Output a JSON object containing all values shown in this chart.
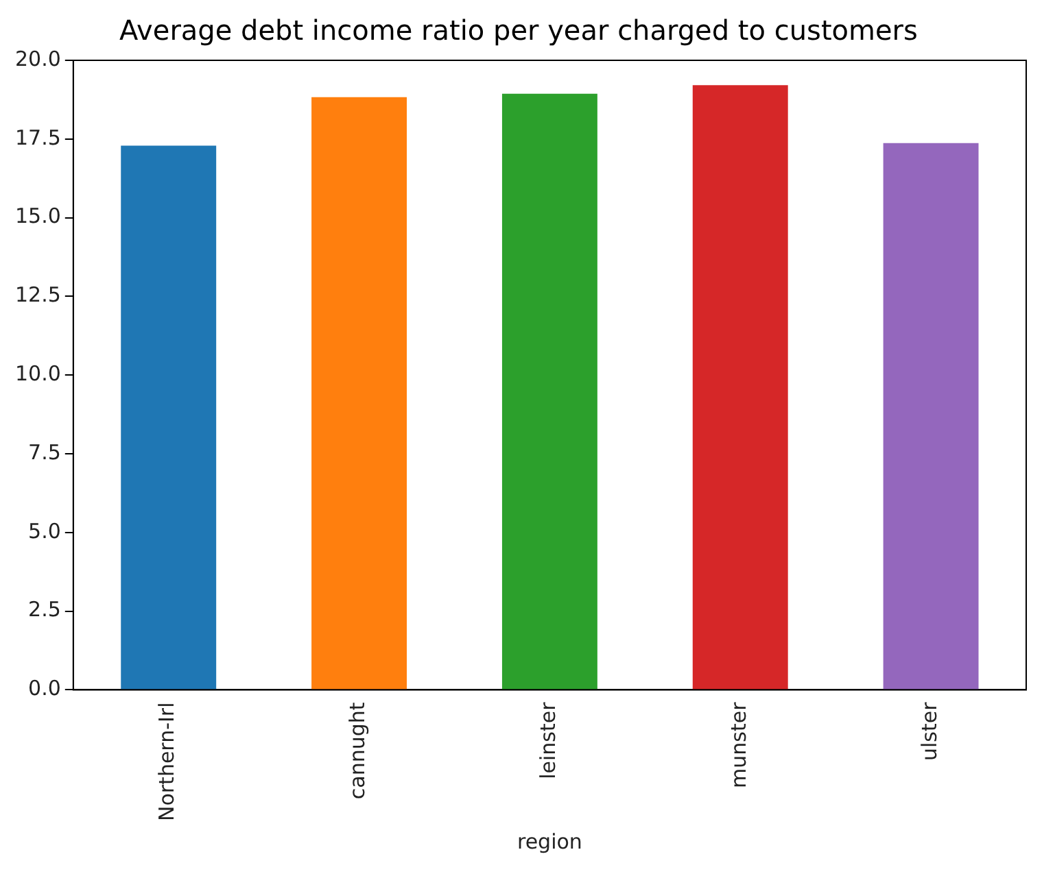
{
  "chart_data": {
    "type": "bar",
    "title": "Average debt income ratio per year charged to customers",
    "xlabel": "region",
    "categories": [
      "Northern-Irl",
      "cannught",
      "leinster",
      "munster",
      "ulster"
    ],
    "values": [
      17.29,
      18.83,
      18.94,
      19.21,
      17.37
    ],
    "colors": [
      "#1f77b4",
      "#ff7f0e",
      "#2ca02c",
      "#d62728",
      "#9467bd"
    ],
    "ylim": [
      0,
      20
    ],
    "yticks": [
      {
        "value": 0,
        "label": "0.0"
      },
      {
        "value": 2.5,
        "label": "2.5"
      },
      {
        "value": 5,
        "label": "5.0"
      },
      {
        "value": 7.5,
        "label": "7.5"
      },
      {
        "value": 10,
        "label": "10.0"
      },
      {
        "value": 12.5,
        "label": "12.5"
      },
      {
        "value": 15,
        "label": "15.0"
      },
      {
        "value": 17.5,
        "label": "17.5"
      },
      {
        "value": 20,
        "label": "20.0"
      }
    ],
    "grid": false,
    "legend": false
  }
}
